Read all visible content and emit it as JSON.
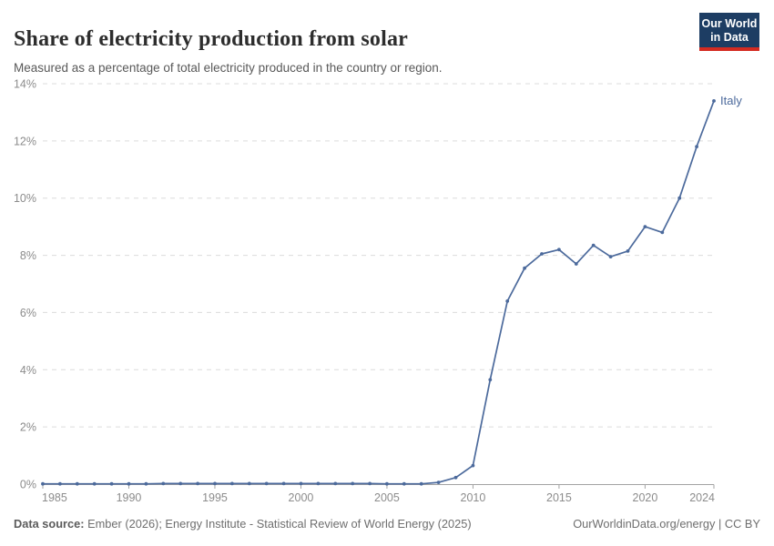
{
  "header": {
    "title": "Share of electricity production from solar",
    "subtitle": "Measured as a percentage of total electricity produced in the country or region.",
    "logo_line1": "Our World",
    "logo_line2": "in Data"
  },
  "chart_data": {
    "type": "line",
    "title": "Share of electricity production from solar",
    "xlabel": "",
    "ylabel": "",
    "xlim": [
      1985,
      2024
    ],
    "ylim": [
      0,
      14
    ],
    "grid": "horizontal-dashed",
    "legend_position": "end-of-line-label",
    "yticks": [
      0,
      2,
      4,
      6,
      8,
      10,
      12,
      14
    ],
    "ytick_labels": [
      "0%",
      "2%",
      "4%",
      "6%",
      "8%",
      "10%",
      "12%",
      "14%"
    ],
    "xticks": [
      1985,
      1990,
      1995,
      2000,
      2005,
      2010,
      2015,
      2020,
      2024
    ],
    "xtick_labels": [
      "1985",
      "1990",
      "1995",
      "2000",
      "2005",
      "2010",
      "2015",
      "2020",
      "2024"
    ],
    "series": [
      {
        "name": "Italy",
        "color": "#4c6a9c",
        "x": [
          1985,
          1986,
          1987,
          1988,
          1989,
          1990,
          1991,
          1992,
          1993,
          1994,
          1995,
          1996,
          1997,
          1998,
          1999,
          2000,
          2001,
          2002,
          2003,
          2004,
          2005,
          2006,
          2007,
          2008,
          2009,
          2010,
          2011,
          2012,
          2013,
          2014,
          2015,
          2016,
          2017,
          2018,
          2019,
          2020,
          2021,
          2022,
          2023,
          2024
        ],
        "values": [
          0.01,
          0.01,
          0.01,
          0.01,
          0.01,
          0.01,
          0.01,
          0.02,
          0.02,
          0.02,
          0.02,
          0.02,
          0.02,
          0.02,
          0.02,
          0.02,
          0.02,
          0.02,
          0.02,
          0.02,
          0.01,
          0.01,
          0.01,
          0.06,
          0.23,
          0.65,
          3.65,
          6.4,
          7.55,
          8.05,
          8.2,
          7.7,
          8.35,
          7.95,
          8.15,
          9.0,
          8.8,
          10.0,
          11.8,
          13.4
        ]
      }
    ]
  },
  "footer": {
    "source_label": "Data source:",
    "source_rest": " Ember (2026); Energy Institute - Statistical Review of World Energy (2025)",
    "credit": "OurWorldinData.org/energy | CC BY"
  },
  "colors": {
    "series_blue": "#4c6a9c",
    "gridline": "#dcdcdc",
    "axis_line": "#a3a3a3",
    "tick_label": "#8c8c8c",
    "title": "#2d2d2d",
    "subtitle": "#595959",
    "logo_bg": "#1d3d63",
    "logo_accent": "#d42b21"
  }
}
